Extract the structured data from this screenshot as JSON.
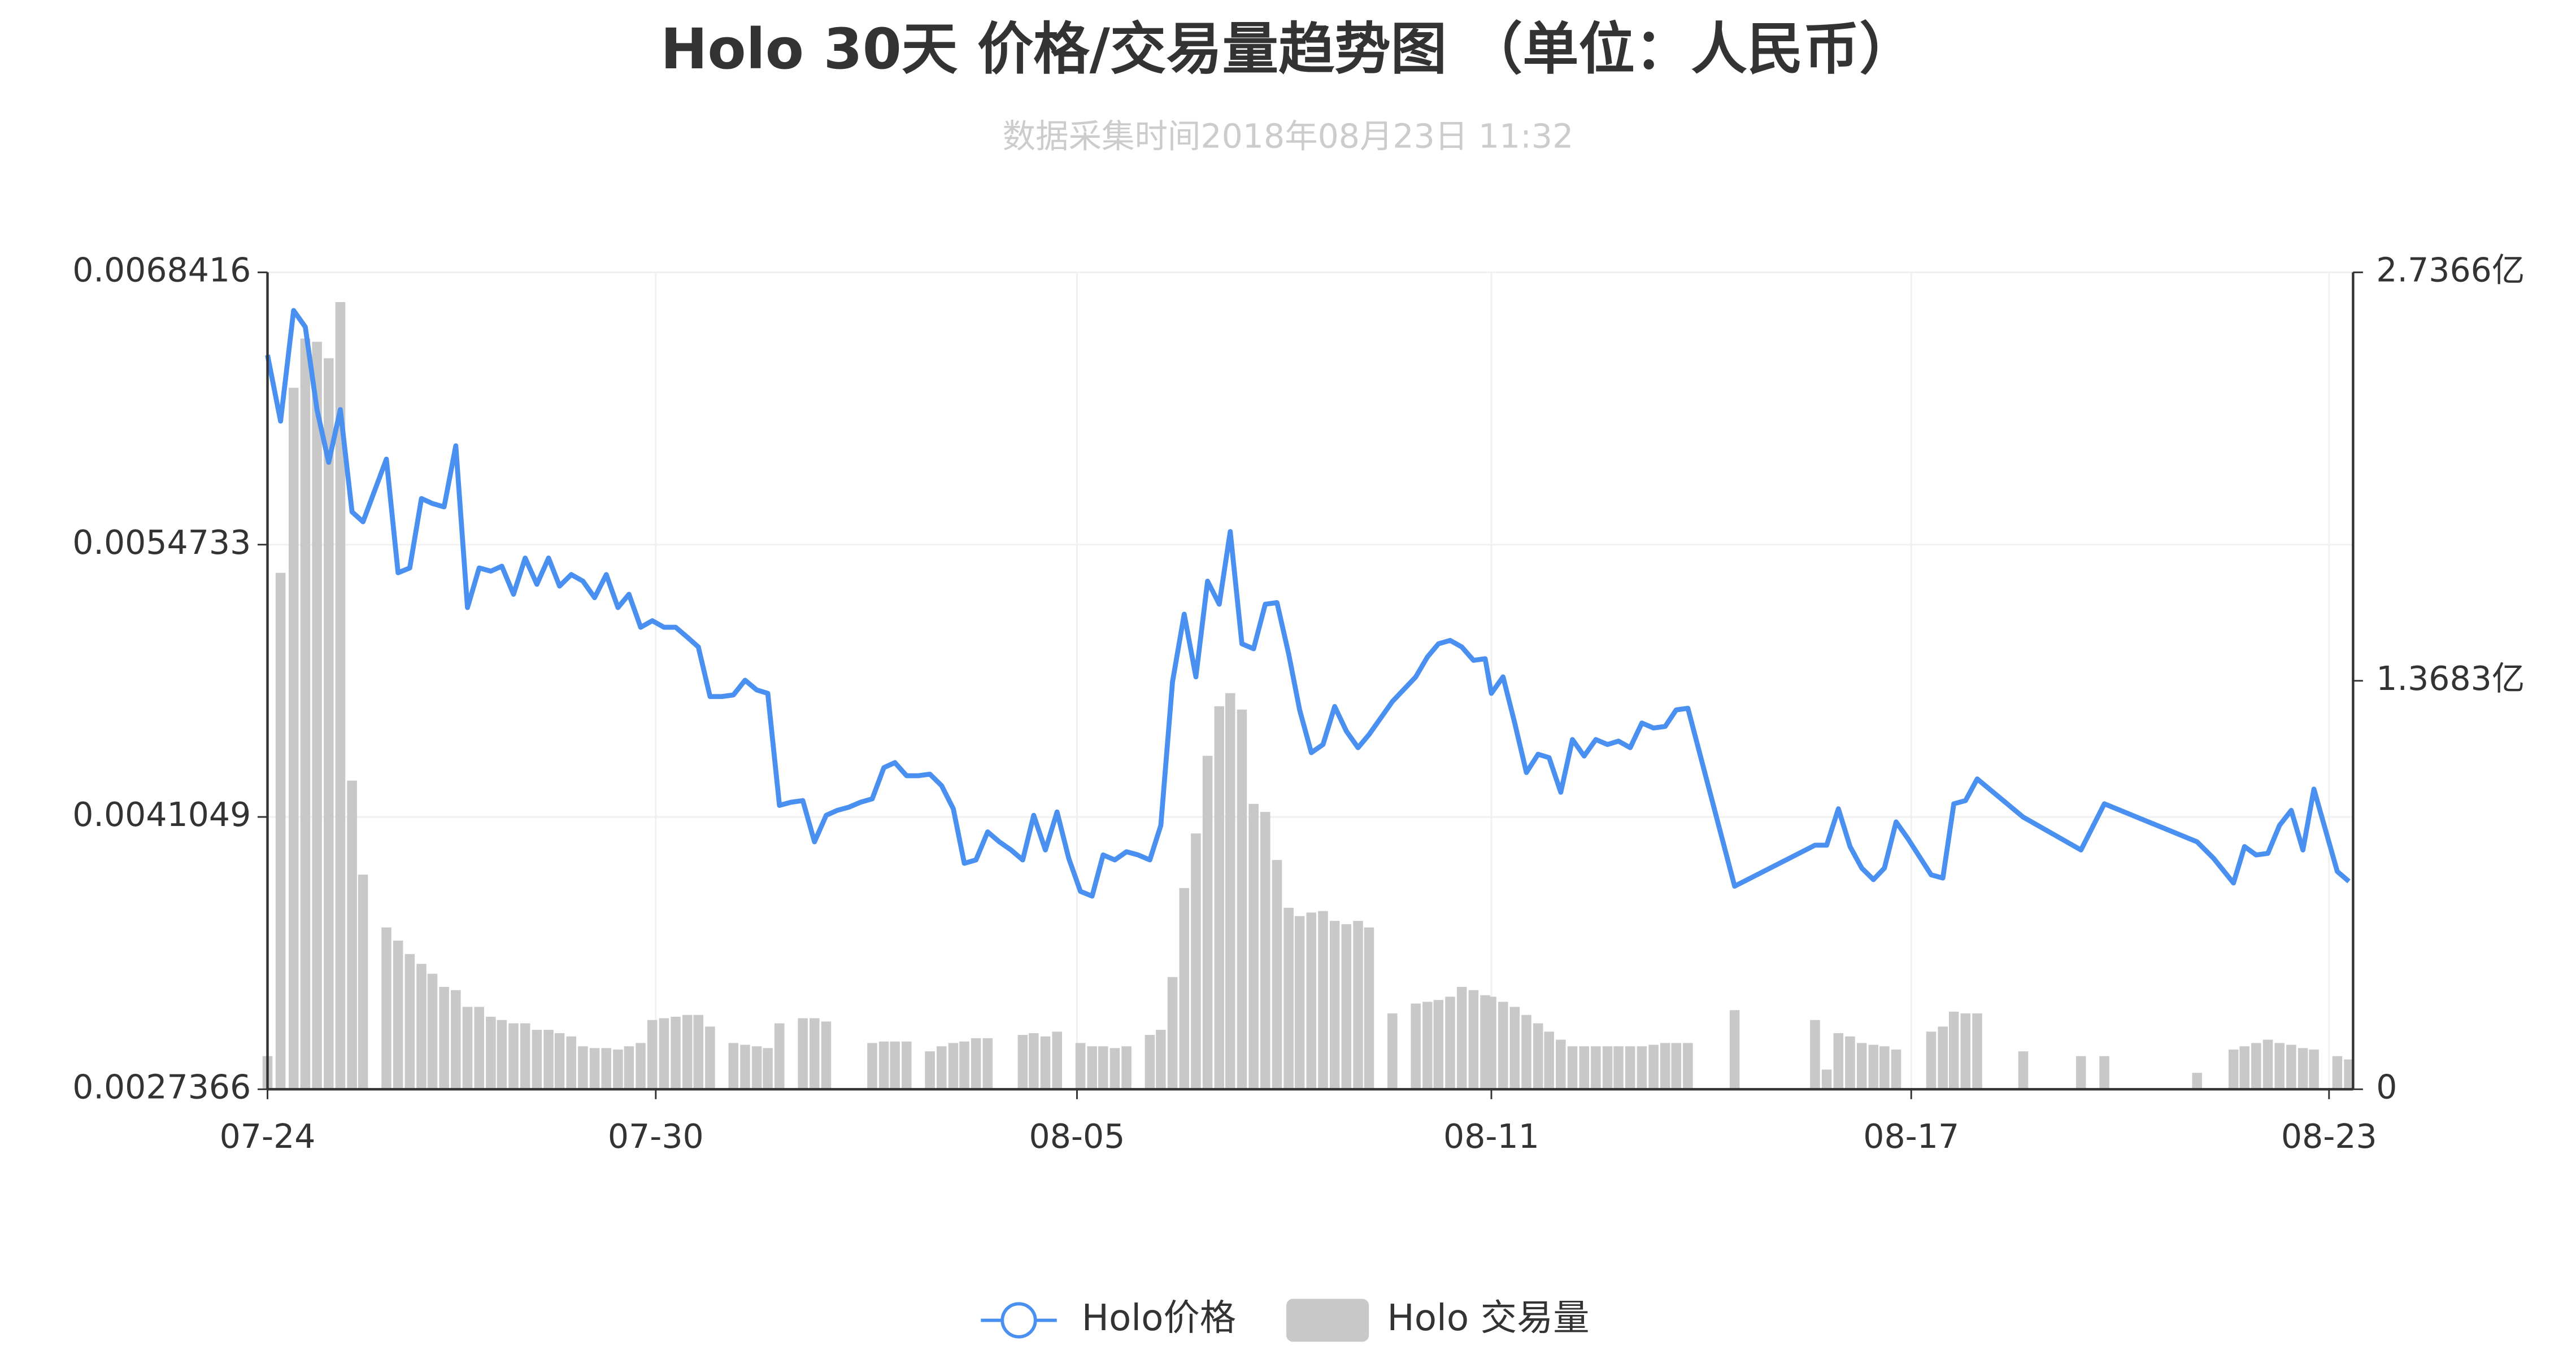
{
  "chart_data": {
    "type": "line-bar",
    "title": "Holo 30天 价格/交易量趋势图 （单位：人民币）",
    "subtitle": "数据采集时间2018年08月23日 11:32",
    "x": [
      0,
      0.19,
      0.38,
      0.55,
      0.72,
      0.89,
      1.06,
      1.23,
      1.39,
      1.73,
      1.9,
      2.07,
      2.24,
      2.4,
      2.57,
      2.74,
      2.91,
      3.08,
      3.25,
      3.41,
      3.58,
      3.75,
      3.92,
      4.09,
      4.25,
      4.42,
      4.59,
      4.76,
      4.93,
      5.1,
      5.26,
      5.43,
      5.6,
      5.77,
      5.94,
      6.11,
      6.27,
      6.44,
      6.61,
      6.78,
      6.95,
      7.12,
      7.28,
      7.45,
      7.62,
      7.79,
      7.96,
      8.13,
      8.29,
      8.46,
      8.63,
      8.8,
      8.97,
      9.13,
      9.3,
      9.47,
      9.64,
      9.81,
      9.98,
      10.14,
      10.31,
      10.48,
      10.65,
      10.82,
      10.99,
      11.15,
      11.32,
      11.49,
      11.66,
      11.83,
      12.0,
      12.16,
      12.33,
      12.5,
      12.67,
      12.84,
      13.0,
      13.17,
      13.34,
      13.51,
      13.68,
      13.85,
      14.01,
      14.18,
      14.35,
      14.52,
      14.69,
      14.86,
      15.02,
      15.19,
      15.36,
      15.53,
      15.7,
      15.87,
      16.03,
      16.37,
      16.71,
      16.88,
      17.04,
      17.21,
      17.38,
      17.55,
      17.72,
      17.81,
      17.98,
      18.15,
      18.32,
      18.49,
      18.65,
      18.82,
      18.99,
      19.16,
      19.33,
      19.5,
      19.66,
      19.83,
      20.0,
      20.17,
      20.34,
      20.5,
      20.67,
      21.35,
      22.52,
      22.69,
      22.86,
      23.03,
      23.2,
      23.37,
      23.53,
      23.7,
      23.87,
      24.21,
      24.38,
      24.54,
      24.71,
      24.88,
      25.55,
      26.39,
      26.73,
      28.08,
      28.32,
      28.61,
      28.77,
      28.94,
      29.11,
      29.28,
      29.45,
      29.62,
      29.78,
      30.12,
      30.29
    ],
    "xlim": [
      0,
      30.35
    ],
    "xticks": [
      {
        "value": 0,
        "label": "07-24"
      },
      {
        "value": 5.65,
        "label": "07-30"
      },
      {
        "value": 11.78,
        "label": "08-05"
      },
      {
        "value": 17.81,
        "label": "08-11"
      },
      {
        "value": 23.92,
        "label": "08-17"
      },
      {
        "value": 30.0,
        "label": "08-23"
      }
    ],
    "ylim": [
      0.0027366,
      0.0068416
    ],
    "yticks": [
      0.0027366,
      0.0041049,
      0.0054733,
      0.0068416
    ],
    "y2lim": [
      0,
      2.7366
    ],
    "y2ticks": [
      0,
      {
        "value": 1.3683,
        "label": "1.3683亿"
      },
      {
        "value": 2.7366,
        "label": "2.7366亿"
      }
    ],
    "grid": true,
    "legend": "bottom",
    "series": [
      {
        "name": "Holo价格",
        "type": "line",
        "color": "#4a90f0",
        "values": [
          0.006426,
          0.006094,
          0.00665,
          0.006567,
          0.006152,
          0.005887,
          0.006152,
          0.005638,
          0.005588,
          0.005903,
          0.005332,
          0.005356,
          0.005705,
          0.00568,
          0.005663,
          0.00597,
          0.005157,
          0.005356,
          0.00534,
          0.005365,
          0.005224,
          0.005406,
          0.005274,
          0.005406,
          0.005265,
          0.005323,
          0.00529,
          0.005207,
          0.005323,
          0.005157,
          0.005224,
          0.005058,
          0.005091,
          0.005058,
          0.005058,
          0.005008,
          0.004959,
          0.00471,
          0.00471,
          0.004718,
          0.004792,
          0.004743,
          0.004726,
          0.004163,
          0.004179,
          0.004187,
          0.00398,
          0.004113,
          0.004138,
          0.004154,
          0.004179,
          0.004196,
          0.004353,
          0.004378,
          0.004312,
          0.004312,
          0.00432,
          0.004262,
          0.004146,
          0.003872,
          0.003889,
          0.00403,
          0.00398,
          0.003939,
          0.003889,
          0.004113,
          0.003939,
          0.00413,
          0.003897,
          0.003731,
          0.003707,
          0.003914,
          0.003889,
          0.00393,
          0.003914,
          0.003889,
          0.004063,
          0.004784,
          0.005124,
          0.004809,
          0.00529,
          0.005174,
          0.005539,
          0.004975,
          0.00495,
          0.005174,
          0.005182,
          0.004925,
          0.004643,
          0.004428,
          0.004469,
          0.00466,
          0.004536,
          0.004453,
          0.004519,
          0.004685,
          0.004809,
          0.004909,
          0.004975,
          0.004992,
          0.004959,
          0.004892,
          0.0049,
          0.004726,
          0.004809,
          0.004577,
          0.004328,
          0.00442,
          0.004403,
          0.004229,
          0.004494,
          0.004411,
          0.004494,
          0.004469,
          0.004486,
          0.004453,
          0.004577,
          0.004552,
          0.00456,
          0.004643,
          0.004651,
          0.003757,
          0.003963,
          0.003963,
          0.004146,
          0.003956,
          0.003848,
          0.00379,
          0.003848,
          0.00408,
          0.003997,
          0.003814,
          0.003798,
          0.004171,
          0.004187,
          0.004296,
          0.004104,
          0.003939,
          0.004171,
          0.00398,
          0.003897,
          0.003773,
          0.003956,
          0.003914,
          0.003922,
          0.004063,
          0.004138,
          0.003939,
          0.004245,
          0.003831,
          0.003781
        ]
      },
      {
        "name": "Holo 交易量",
        "type": "bar",
        "axis": "y2",
        "color": "#c8c8c8",
        "values": [
          0.111,
          1.73,
          2.35,
          2.515,
          2.504,
          2.449,
          2.637,
          1.034,
          0.719,
          0.542,
          0.498,
          0.453,
          0.42,
          0.387,
          0.343,
          0.332,
          0.276,
          0.276,
          0.243,
          0.232,
          0.221,
          0.221,
          0.199,
          0.199,
          0.188,
          0.177,
          0.144,
          0.138,
          0.138,
          0.133,
          0.144,
          0.155,
          0.232,
          0.238,
          0.243,
          0.249,
          0.249,
          0.21,
          null,
          0.155,
          0.149,
          0.144,
          0.138,
          0.221,
          null,
          0.238,
          0.238,
          0.227,
          null,
          null,
          null,
          0.155,
          0.16,
          0.16,
          0.16,
          null,
          0.127,
          0.144,
          0.155,
          0.16,
          0.171,
          0.171,
          null,
          null,
          0.182,
          0.188,
          0.177,
          0.193,
          null,
          0.155,
          0.144,
          0.144,
          0.138,
          0.144,
          null,
          0.182,
          0.199,
          0.376,
          0.674,
          0.857,
          1.117,
          1.283,
          1.327,
          1.272,
          0.956,
          0.929,
          0.768,
          0.608,
          0.58,
          0.592,
          0.597,
          0.564,
          0.553,
          0.564,
          0.542,
          0.254,
          0.287,
          0.293,
          0.299,
          0.31,
          0.343,
          0.332,
          0.315,
          0.31,
          0.293,
          0.276,
          0.249,
          0.221,
          0.193,
          0.166,
          0.144,
          0.144,
          0.144,
          0.144,
          0.144,
          0.144,
          0.144,
          0.149,
          0.155,
          0.155,
          0.155,
          0.265,
          0.232,
          0.066,
          0.188,
          0.177,
          0.155,
          0.149,
          0.144,
          0.133,
          null,
          0.193,
          0.21,
          0.26,
          0.254,
          0.254,
          0.127,
          0.111,
          0.111,
          0.055,
          null,
          0.133,
          0.144,
          0.155,
          0.166,
          0.155,
          0.149,
          0.138,
          0.133,
          0.111,
          0.1
        ]
      }
    ]
  }
}
